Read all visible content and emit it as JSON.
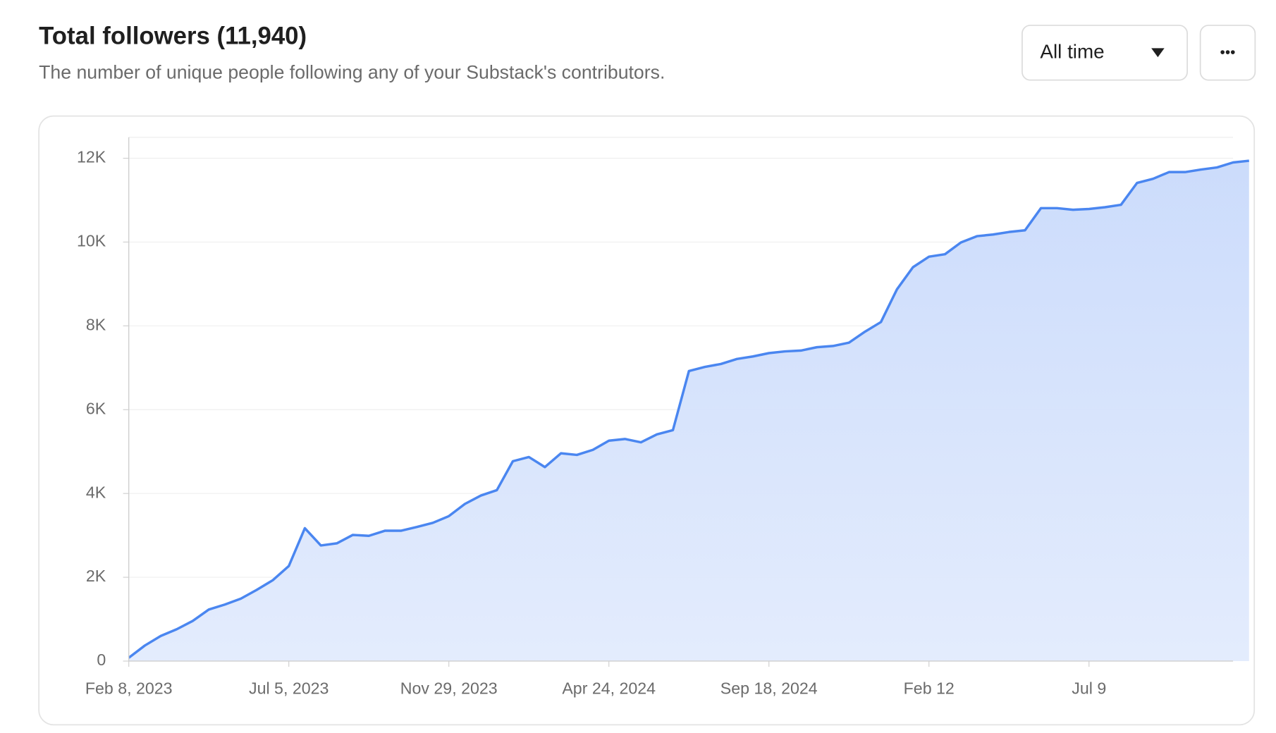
{
  "header": {
    "title": "Total followers (11,940)",
    "subtitle": "The number of unique people following any of your Substack's contributors.",
    "range_select": "All time",
    "more_button": "•••"
  },
  "chart_data": {
    "type": "area",
    "color": "#4a86f0",
    "fill": "#d3e1fd",
    "grid": true,
    "xlim": [
      0,
      69
    ],
    "xticks": [
      {
        "value": 0,
        "label": "Feb 8, 2023"
      },
      {
        "value": 10,
        "label": "Jul 5, 2023"
      },
      {
        "value": 20,
        "label": "Nov 29, 2023"
      },
      {
        "value": 30,
        "label": "Apr 24, 2024"
      },
      {
        "value": 40,
        "label": "Sep 18, 2024"
      },
      {
        "value": 50,
        "label": "Feb 12"
      },
      {
        "value": 60,
        "label": "Jul 9"
      }
    ],
    "ylim": [
      0,
      12500
    ],
    "yticks": [
      0,
      {
        "value": 2000,
        "label": "2K"
      },
      {
        "value": 4000,
        "label": "4K"
      },
      {
        "value": 6000,
        "label": "6K"
      },
      {
        "value": 8000,
        "label": "8K"
      },
      {
        "value": 10000,
        "label": "10K"
      },
      {
        "value": 12000,
        "label": "12K"
      }
    ],
    "values": [
      80,
      370,
      600,
      760,
      960,
      1230,
      1350,
      1490,
      1700,
      1930,
      2270,
      3170,
      2760,
      2810,
      3010,
      2990,
      3110,
      3110,
      3200,
      3300,
      3460,
      3750,
      3950,
      4080,
      4770,
      4870,
      4630,
      4960,
      4920,
      5040,
      5260,
      5300,
      5220,
      5410,
      5510,
      6920,
      7020,
      7090,
      7210,
      7270,
      7350,
      7390,
      7410,
      7490,
      7520,
      7600,
      7860,
      8090,
      8870,
      9400,
      9650,
      9710,
      9990,
      10140,
      10180,
      10240,
      10280,
      10810,
      10810,
      10770,
      10790,
      10830,
      10890,
      11410,
      11510,
      11670,
      11670,
      11730,
      11780,
      11900,
      11940
    ]
  }
}
